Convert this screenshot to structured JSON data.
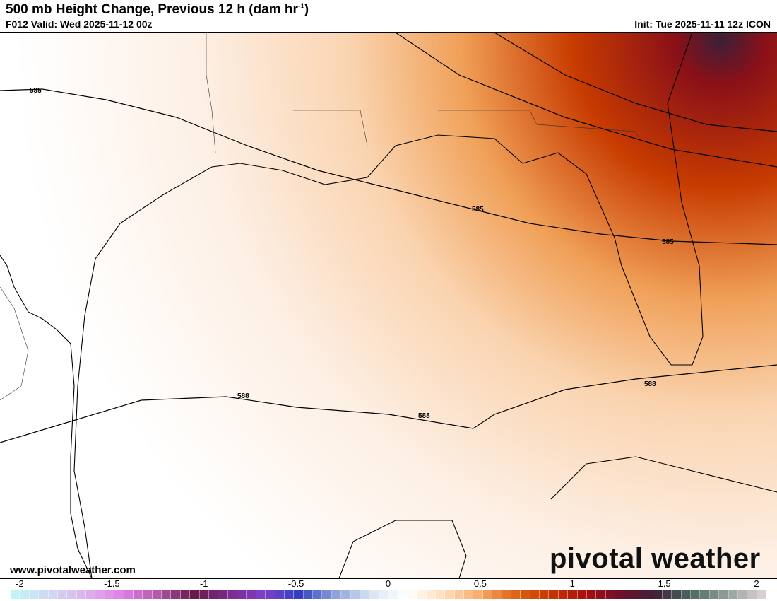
{
  "header": {
    "title": "500 mb Height Change, Previous 12 h (dam hr",
    "title_sup": "-1",
    "title_close": ")",
    "valid": "F012 Valid: Wed 2025-11-12 00z",
    "init": "Init: Tue 2025-11-11 12z ICON"
  },
  "footer": {
    "website": "www.pivotalweather.com",
    "brand": "pivotal weather"
  },
  "colorbar": {
    "ticks": [
      "-2",
      "-1.5",
      "-1",
      "-0.5",
      "0",
      "0.5",
      "1",
      "1.5",
      "2"
    ],
    "min": -2,
    "max": 2,
    "stops": [
      "#bff3f5",
      "#cfd8f2",
      "#dcb3ee",
      "#e27fe8",
      "#b05aa8",
      "#6a1848",
      "#7a2a8a",
      "#8040c8",
      "#3040c0",
      "#8aa0d8",
      "#d8e4f2",
      "#ffffff",
      "#ffe0c0",
      "#f8b070",
      "#e06818",
      "#c83800",
      "#a81010",
      "#701028",
      "#402038",
      "#486860",
      "#909c98",
      "#d8d0d0"
    ]
  },
  "contours": {
    "labels": [
      "585",
      "585",
      "585",
      "588",
      "588",
      "588"
    ]
  }
}
